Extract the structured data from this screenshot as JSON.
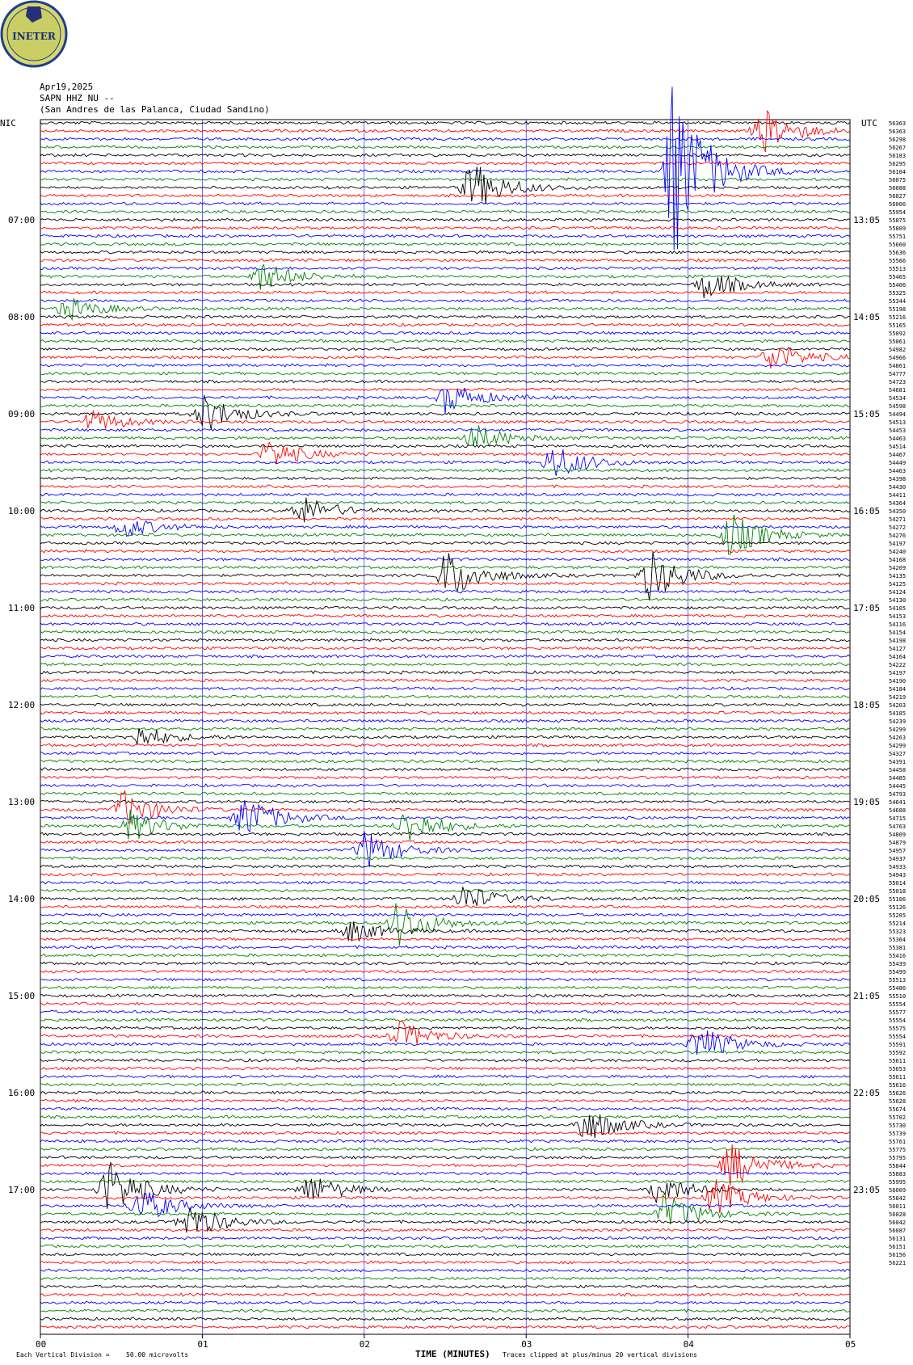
{
  "logo": {
    "text": "INETER",
    "colors": {
      "ring": "#1f3f8f",
      "fill": "#d8d86a",
      "inner": "#c9cf64",
      "globe": "#2a2f7a"
    }
  },
  "header": {
    "date": "Apr19,2025",
    "station": "SAPN HHZ NU --",
    "location": "(San Andres de las Palanca, Ciudad Sandino)"
  },
  "left_tz": "NIC",
  "right_tz": "UTC",
  "colors": {
    "trace_cycle": [
      "#000000",
      "#ff0000",
      "#0000ff",
      "#008000"
    ],
    "grid": "#0000ff",
    "text": "#000000"
  },
  "chart_data": {
    "type": "line",
    "subtype": "helicorder",
    "rows": 150,
    "minutes_per_row": 5,
    "x_ticks": [
      "00",
      "01",
      "02",
      "03",
      "04",
      "05"
    ],
    "xlabel": "TIME (MINUTES)",
    "left_time_labels": [
      "07:00",
      "08:00",
      "09:00",
      "10:00",
      "11:00",
      "12:00",
      "13:00",
      "14:00",
      "15:00",
      "16:00",
      "17:00"
    ],
    "left_time_rows": [
      12,
      24,
      36,
      48,
      60,
      72,
      84,
      96,
      108,
      120,
      132
    ],
    "right_time_labels": [
      "13:05",
      "14:05",
      "15:05",
      "16:05",
      "17:05",
      "18:05",
      "19:05",
      "20:05",
      "21:05",
      "22:05",
      "23:05"
    ],
    "right_time_rows": [
      12,
      24,
      36,
      48,
      60,
      72,
      84,
      96,
      108,
      120,
      132
    ],
    "row_values": [
      56363,
      56363,
      56298,
      56267,
      56183,
      56295,
      56104,
      56075,
      56088,
      56027,
      56006,
      55954,
      55875,
      55809,
      55751,
      55660,
      55636,
      55566,
      55513,
      55465,
      55406,
      55325,
      55344,
      55198,
      55216,
      55165,
      55092,
      55061,
      54982,
      54966,
      54861,
      54777,
      54723,
      54681,
      54534,
      54598,
      54494,
      54513,
      54453,
      54463,
      54514,
      54467,
      54449,
      54463,
      54398,
      54430,
      54411,
      54364,
      54350,
      54271,
      54272,
      54276,
      54197,
      54240,
      54168,
      54209,
      54135,
      54125,
      54124,
      54130,
      54105,
      54153,
      54116,
      54154,
      54198,
      54127,
      54164,
      54222,
      54197,
      54190,
      54184,
      54219,
      54203,
      54185,
      54239,
      54299,
      54263,
      54299,
      54327,
      54391,
      54458,
      54485,
      54445,
      54793,
      54641,
      54688,
      54715,
      54763,
      54809,
      54879,
      54957,
      54937,
      54933,
      54943,
      55014,
      55018,
      55106,
      55126,
      55205,
      55214,
      55323,
      55364,
      55381,
      55416,
      55439,
      55499,
      55513,
      55486,
      55510,
      55554,
      55577,
      55554,
      55575,
      55554,
      55591,
      55592,
      55611,
      55653,
      55611,
      55616,
      55626,
      55628,
      55674,
      55702,
      55730,
      55739,
      55761,
      55775,
      55795,
      55844,
      55883,
      55995,
      56009,
      55842,
      56011,
      56028,
      56042,
      56087,
      56131,
      56151,
      56156,
      56221
    ],
    "events": [
      {
        "row": 1,
        "minute": 4.45,
        "amplitude": 6
      },
      {
        "row": 6,
        "minute": 3.9,
        "amplitude": 24
      },
      {
        "row": 8,
        "minute": 2.65,
        "amplitude": 7
      },
      {
        "row": 19,
        "minute": 1.35,
        "amplitude": 4
      },
      {
        "row": 20,
        "minute": 4.1,
        "amplitude": 4
      },
      {
        "row": 23,
        "minute": 0.15,
        "amplitude": 3
      },
      {
        "row": 29,
        "minute": 4.5,
        "amplitude": 4
      },
      {
        "row": 34,
        "minute": 2.5,
        "amplitude": 4
      },
      {
        "row": 36,
        "minute": 1.0,
        "amplitude": 5
      },
      {
        "row": 37,
        "minute": 0.3,
        "amplitude": 3
      },
      {
        "row": 39,
        "minute": 2.65,
        "amplitude": 4
      },
      {
        "row": 41,
        "minute": 1.4,
        "amplitude": 4
      },
      {
        "row": 42,
        "minute": 3.15,
        "amplitude": 5
      },
      {
        "row": 48,
        "minute": 1.6,
        "amplitude": 4
      },
      {
        "row": 50,
        "minute": 0.5,
        "amplitude": 3
      },
      {
        "row": 51,
        "minute": 4.25,
        "amplitude": 6
      },
      {
        "row": 56,
        "minute": 2.5,
        "amplitude": 7
      },
      {
        "row": 56,
        "minute": 3.75,
        "amplitude": 7
      },
      {
        "row": 76,
        "minute": 0.6,
        "amplitude": 3
      },
      {
        "row": 85,
        "minute": 0.5,
        "amplitude": 5
      },
      {
        "row": 86,
        "minute": 1.25,
        "amplitude": 6
      },
      {
        "row": 87,
        "minute": 0.55,
        "amplitude": 4
      },
      {
        "row": 87,
        "minute": 2.25,
        "amplitude": 5
      },
      {
        "row": 90,
        "minute": 2.0,
        "amplitude": 5
      },
      {
        "row": 96,
        "minute": 2.6,
        "amplitude": 4
      },
      {
        "row": 99,
        "minute": 2.2,
        "amplitude": 6
      },
      {
        "row": 100,
        "minute": 1.9,
        "amplitude": 3
      },
      {
        "row": 113,
        "minute": 2.2,
        "amplitude": 4
      },
      {
        "row": 114,
        "minute": 4.05,
        "amplitude": 5
      },
      {
        "row": 124,
        "minute": 3.35,
        "amplitude": 5
      },
      {
        "row": 129,
        "minute": 4.25,
        "amplitude": 6
      },
      {
        "row": 132,
        "minute": 0.4,
        "amplitude": 8
      },
      {
        "row": 132,
        "minute": 1.65,
        "amplitude": 4
      },
      {
        "row": 132,
        "minute": 3.8,
        "amplitude": 4
      },
      {
        "row": 133,
        "minute": 4.15,
        "amplitude": 5
      },
      {
        "row": 134,
        "minute": 0.6,
        "amplitude": 5
      },
      {
        "row": 135,
        "minute": 3.85,
        "amplitude": 5
      },
      {
        "row": 136,
        "minute": 0.9,
        "amplitude": 5
      }
    ]
  },
  "footer": {
    "scale_note": "Each Vertical Division =",
    "scale_value": "50.00 microvolts",
    "clip_note": "Traces clipped at plus/minus 20 vertical divisions"
  }
}
